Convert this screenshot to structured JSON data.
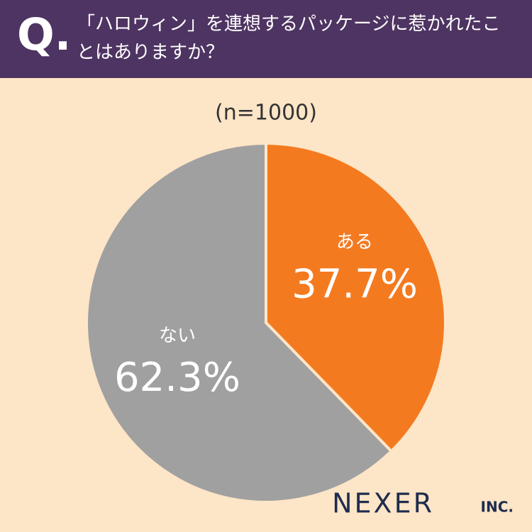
{
  "question_marker": "Q.",
  "chart_data": {
    "type": "pie",
    "title": "「ハロウィン」を連想するパッケージに惹かれたことはありますか？",
    "subtitle": "(n=1000)",
    "categories": [
      "ある",
      "ない"
    ],
    "values": [
      37.7,
      62.3
    ],
    "value_labels": [
      "37.7%",
      "62.3%"
    ],
    "colors": [
      "#f47a20",
      "#a0a0a0"
    ]
  },
  "logo": {
    "name": "NEXER",
    "suffix": "INC."
  }
}
